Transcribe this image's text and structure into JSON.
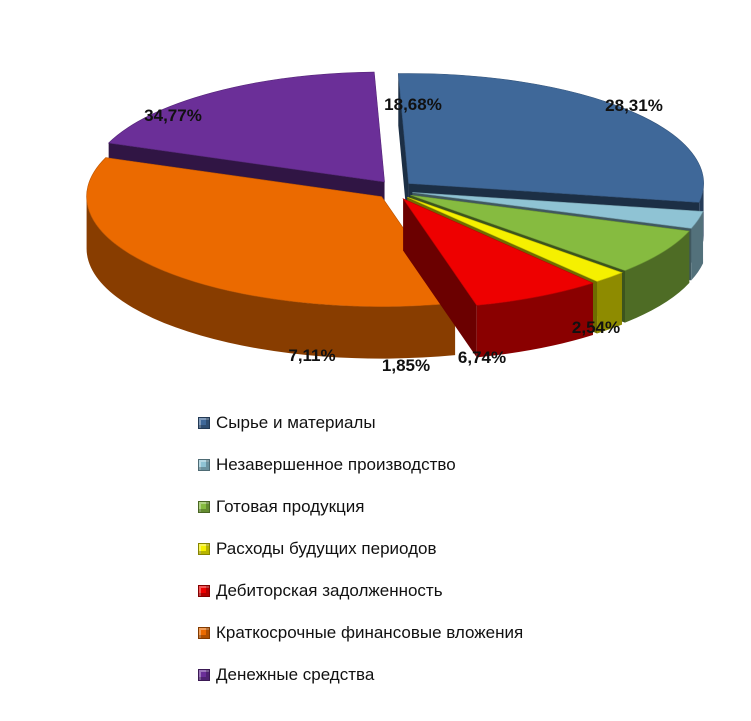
{
  "chart_data": {
    "type": "pie",
    "three_d": true,
    "legend_position": "bottom",
    "slices": [
      {
        "label": "Сырье и материалы",
        "value": 28.31,
        "value_label": "28,31%",
        "color": "#3F6899"
      },
      {
        "label": "Незавершенное производство",
        "value": 2.54,
        "value_label": "2,54%",
        "color": "#8FC3D4"
      },
      {
        "label": "Готовая продукция",
        "value": 6.74,
        "value_label": "6,74%",
        "color": "#86BB40"
      },
      {
        "label": "Расходы будущих периодов",
        "value": 1.85,
        "value_label": "1,85%",
        "color": "#F5F000"
      },
      {
        "label": "Дебиторская задолженность",
        "value": 7.11,
        "value_label": "7,11%",
        "color": "#EE0000"
      },
      {
        "label": "Краткосрочные финансовые вложения",
        "value": 34.77,
        "value_label": "34,77%",
        "color": "#EB6A00"
      },
      {
        "label": "Денежные средства",
        "value": 18.68,
        "value_label": "18,68%",
        "color": "#6B2F98"
      }
    ]
  }
}
